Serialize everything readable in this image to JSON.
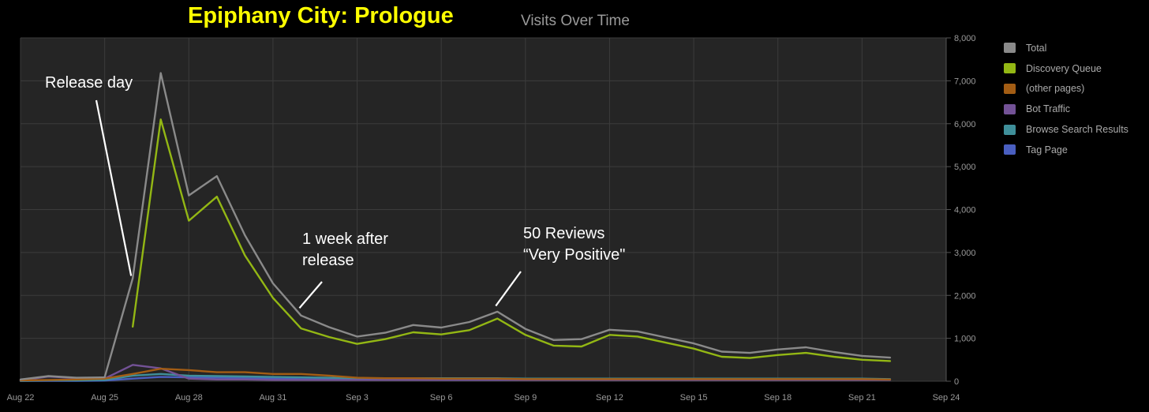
{
  "header": {
    "app_title": "Epiphany City: Prologue",
    "chart_title": "Visits Over Time"
  },
  "chart_data": {
    "type": "line",
    "title": "Visits Over Time",
    "xlabel": "",
    "ylabel": "",
    "x_ticks": [
      "Aug 22",
      "Aug 25",
      "Aug 28",
      "Aug 31",
      "Sep 3",
      "Sep 6",
      "Sep 9",
      "Sep 12",
      "Sep 15",
      "Sep 18",
      "Sep 21",
      "Sep 24"
    ],
    "y_ticks": [
      "0",
      "1,000",
      "2,000",
      "3,000",
      "4,000",
      "5,000",
      "6,000",
      "7,000",
      "8,000"
    ],
    "ylim": [
      0,
      8000
    ],
    "xlim": [
      "Aug 22",
      "Sep 24"
    ],
    "y_axis_side": "right",
    "grid": true,
    "legend_position": "right",
    "series": [
      {
        "name": "Total",
        "color": "#8a8a8a",
        "points": [
          [
            "Aug 22",
            40
          ],
          [
            "Aug 23",
            120
          ],
          [
            "Aug 24",
            80
          ],
          [
            "Aug 25",
            90
          ],
          [
            "Aug 26",
            2400
          ],
          [
            "Aug 27",
            7180
          ],
          [
            "Aug 28",
            4330
          ],
          [
            "Aug 29",
            4780
          ],
          [
            "Aug 30",
            3400
          ],
          [
            "Aug 31",
            2280
          ],
          [
            "Sep 1",
            1530
          ],
          [
            "Sep 2",
            1260
          ],
          [
            "Sep 3",
            1040
          ],
          [
            "Sep 4",
            1130
          ],
          [
            "Sep 5",
            1310
          ],
          [
            "Sep 6",
            1250
          ],
          [
            "Sep 7",
            1380
          ],
          [
            "Sep 8",
            1620
          ],
          [
            "Sep 9",
            1220
          ],
          [
            "Sep 10",
            960
          ],
          [
            "Sep 11",
            980
          ],
          [
            "Sep 12",
            1200
          ],
          [
            "Sep 13",
            1160
          ],
          [
            "Sep 14",
            1020
          ],
          [
            "Sep 15",
            880
          ],
          [
            "Sep 16",
            690
          ],
          [
            "Sep 17",
            660
          ],
          [
            "Sep 18",
            740
          ],
          [
            "Sep 19",
            790
          ],
          [
            "Sep 20",
            680
          ],
          [
            "Sep 21",
            590
          ],
          [
            "Sep 22",
            550
          ]
        ]
      },
      {
        "name": "Discovery Queue",
        "color": "#93b714",
        "points": [
          [
            "Aug 26",
            1270
          ],
          [
            "Aug 27",
            6100
          ],
          [
            "Aug 28",
            3740
          ],
          [
            "Aug 29",
            4300
          ],
          [
            "Aug 30",
            2930
          ],
          [
            "Aug 31",
            1940
          ],
          [
            "Sep 1",
            1230
          ],
          [
            "Sep 2",
            1030
          ],
          [
            "Sep 3",
            870
          ],
          [
            "Sep 4",
            980
          ],
          [
            "Sep 5",
            1140
          ],
          [
            "Sep 6",
            1090
          ],
          [
            "Sep 7",
            1190
          ],
          [
            "Sep 8",
            1460
          ],
          [
            "Sep 9",
            1080
          ],
          [
            "Sep 10",
            830
          ],
          [
            "Sep 11",
            810
          ],
          [
            "Sep 12",
            1080
          ],
          [
            "Sep 13",
            1040
          ],
          [
            "Sep 14",
            900
          ],
          [
            "Sep 15",
            760
          ],
          [
            "Sep 16",
            570
          ],
          [
            "Sep 17",
            540
          ],
          [
            "Sep 18",
            610
          ],
          [
            "Sep 19",
            660
          ],
          [
            "Sep 20",
            570
          ],
          [
            "Sep 21",
            500
          ],
          [
            "Sep 22",
            470
          ]
        ]
      },
      {
        "name": "(other pages)",
        "color": "#a35d14",
        "points": [
          [
            "Aug 22",
            20
          ],
          [
            "Aug 23",
            30
          ],
          [
            "Aug 24",
            40
          ],
          [
            "Aug 25",
            60
          ],
          [
            "Aug 26",
            170
          ],
          [
            "Aug 27",
            290
          ],
          [
            "Aug 28",
            260
          ],
          [
            "Aug 29",
            210
          ],
          [
            "Aug 30",
            210
          ],
          [
            "Aug 31",
            170
          ],
          [
            "Sep 1",
            170
          ],
          [
            "Sep 2",
            130
          ],
          [
            "Sep 3",
            80
          ],
          [
            "Sep 4",
            70
          ],
          [
            "Sep 5",
            70
          ],
          [
            "Sep 6",
            60
          ],
          [
            "Sep 7",
            60
          ],
          [
            "Sep 8",
            60
          ],
          [
            "Sep 9",
            50
          ],
          [
            "Sep 10",
            50
          ],
          [
            "Sep 11",
            50
          ],
          [
            "Sep 12",
            50
          ],
          [
            "Sep 13",
            50
          ],
          [
            "Sep 14",
            50
          ],
          [
            "Sep 15",
            50
          ],
          [
            "Sep 16",
            50
          ],
          [
            "Sep 17",
            50
          ],
          [
            "Sep 18",
            50
          ],
          [
            "Sep 19",
            50
          ],
          [
            "Sep 20",
            50
          ],
          [
            "Sep 21",
            50
          ],
          [
            "Sep 22",
            40
          ]
        ]
      },
      {
        "name": "Bot Traffic",
        "color": "#735296",
        "points": [
          [
            "Aug 22",
            20
          ],
          [
            "Aug 23",
            110
          ],
          [
            "Aug 24",
            70
          ],
          [
            "Aug 25",
            60
          ],
          [
            "Aug 26",
            380
          ],
          [
            "Aug 27",
            300
          ],
          [
            "Aug 28",
            60
          ],
          [
            "Aug 29",
            40
          ],
          [
            "Aug 30",
            40
          ],
          [
            "Aug 31",
            30
          ],
          [
            "Sep 1",
            30
          ],
          [
            "Sep 2",
            30
          ],
          [
            "Sep 3",
            30
          ],
          [
            "Sep 4",
            30
          ],
          [
            "Sep 5",
            30
          ],
          [
            "Sep 6",
            30
          ],
          [
            "Sep 7",
            30
          ],
          [
            "Sep 8",
            30
          ],
          [
            "Sep 9",
            30
          ],
          [
            "Sep 10",
            30
          ],
          [
            "Sep 11",
            30
          ],
          [
            "Sep 12",
            30
          ],
          [
            "Sep 13",
            30
          ],
          [
            "Sep 14",
            30
          ],
          [
            "Sep 15",
            30
          ],
          [
            "Sep 16",
            30
          ],
          [
            "Sep 17",
            30
          ],
          [
            "Sep 18",
            30
          ],
          [
            "Sep 19",
            30
          ],
          [
            "Sep 20",
            30
          ],
          [
            "Sep 21",
            30
          ],
          [
            "Sep 22",
            30
          ]
        ]
      },
      {
        "name": "Browse Search Results",
        "color": "#3f8f9a",
        "points": [
          [
            "Aug 22",
            10
          ],
          [
            "Aug 23",
            20
          ],
          [
            "Aug 24",
            20
          ],
          [
            "Aug 25",
            30
          ],
          [
            "Aug 26",
            130
          ],
          [
            "Aug 27",
            170
          ],
          [
            "Aug 28",
            130
          ],
          [
            "Aug 29",
            120
          ],
          [
            "Aug 30",
            110
          ],
          [
            "Aug 31",
            100
          ],
          [
            "Sep 1",
            90
          ],
          [
            "Sep 2",
            80
          ],
          [
            "Sep 3",
            70
          ],
          [
            "Sep 4",
            70
          ],
          [
            "Sep 5",
            70
          ],
          [
            "Sep 6",
            70
          ],
          [
            "Sep 7",
            70
          ],
          [
            "Sep 8",
            70
          ],
          [
            "Sep 9",
            60
          ],
          [
            "Sep 10",
            60
          ],
          [
            "Sep 11",
            60
          ],
          [
            "Sep 12",
            60
          ],
          [
            "Sep 13",
            60
          ],
          [
            "Sep 14",
            60
          ],
          [
            "Sep 15",
            60
          ],
          [
            "Sep 16",
            60
          ],
          [
            "Sep 17",
            60
          ],
          [
            "Sep 18",
            60
          ],
          [
            "Sep 19",
            60
          ],
          [
            "Sep 20",
            60
          ],
          [
            "Sep 21",
            60
          ],
          [
            "Sep 22",
            50
          ]
        ]
      },
      {
        "name": "Tag Page",
        "color": "#4a5fc0",
        "points": [
          [
            "Aug 22",
            5
          ],
          [
            "Aug 23",
            10
          ],
          [
            "Aug 24",
            10
          ],
          [
            "Aug 25",
            15
          ],
          [
            "Aug 26",
            60
          ],
          [
            "Aug 27",
            100
          ],
          [
            "Aug 28",
            90
          ],
          [
            "Aug 29",
            80
          ],
          [
            "Aug 30",
            70
          ],
          [
            "Aug 31",
            60
          ],
          [
            "Sep 1",
            50
          ],
          [
            "Sep 2",
            50
          ],
          [
            "Sep 3",
            50
          ],
          [
            "Sep 4",
            50
          ],
          [
            "Sep 5",
            50
          ],
          [
            "Sep 6",
            50
          ],
          [
            "Sep 7",
            50
          ],
          [
            "Sep 8",
            50
          ],
          [
            "Sep 9",
            50
          ],
          [
            "Sep 10",
            50
          ],
          [
            "Sep 11",
            50
          ],
          [
            "Sep 12",
            50
          ],
          [
            "Sep 13",
            50
          ],
          [
            "Sep 14",
            50
          ],
          [
            "Sep 15",
            50
          ],
          [
            "Sep 16",
            50
          ],
          [
            "Sep 17",
            50
          ],
          [
            "Sep 18",
            50
          ],
          [
            "Sep 19",
            50
          ],
          [
            "Sep 20",
            50
          ],
          [
            "Sep 21",
            50
          ],
          [
            "Sep 22",
            40
          ]
        ]
      }
    ],
    "annotations": [
      {
        "lines": [
          "Release day"
        ],
        "target": [
          "Aug 26",
          2400
        ]
      },
      {
        "lines": [
          "1 week after",
          "release"
        ],
        "target": [
          "Sep 1",
          1650
        ]
      },
      {
        "lines": [
          "50 Reviews",
          "“Very Positive\""
        ],
        "target": [
          "Sep 8",
          1700
        ]
      }
    ]
  }
}
